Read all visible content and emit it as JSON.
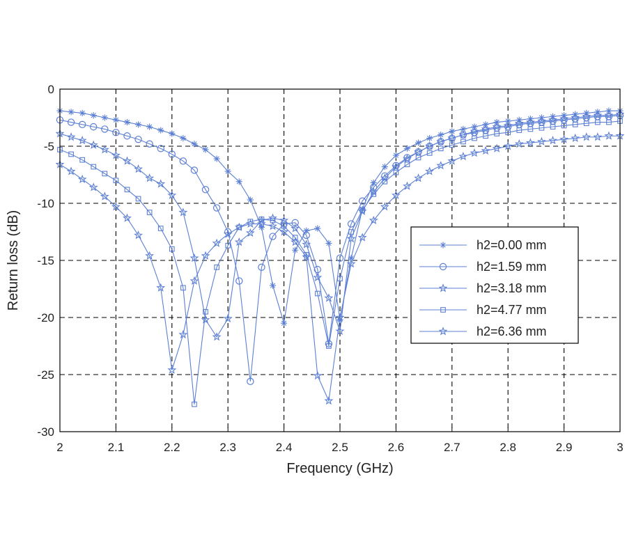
{
  "chart_data": {
    "type": "line",
    "title": "",
    "xlabel": "Frequency (GHz)",
    "ylabel": "Return loss (dB)",
    "xlim": [
      2,
      3
    ],
    "ylim": [
      -30,
      0
    ],
    "xticks": [
      2,
      2.1,
      2.2,
      2.3,
      2.4,
      2.5,
      2.6,
      2.7,
      2.8,
      2.9,
      3
    ],
    "xtick_labels": [
      "2",
      "2.1",
      "2.2",
      "2.3",
      "2.4",
      "2.5",
      "2.6",
      "2.7",
      "2.8",
      "2.9",
      "3"
    ],
    "yticks": [
      0,
      -5,
      -10,
      -15,
      -20,
      -25,
      -30
    ],
    "ytick_labels": [
      "0",
      "-5",
      "-10",
      "-15",
      "-20",
      "-25",
      "-30"
    ],
    "grid": true,
    "legend_position": "center-right",
    "line_color": "#5b7fd4",
    "series": [
      {
        "name": "h2=0.00 mm",
        "marker": "asterisk",
        "x": [
          2.0,
          2.02,
          2.04,
          2.06,
          2.08,
          2.1,
          2.12,
          2.14,
          2.16,
          2.18,
          2.2,
          2.22,
          2.24,
          2.26,
          2.28,
          2.3,
          2.32,
          2.34,
          2.36,
          2.38,
          2.4,
          2.42,
          2.44,
          2.46,
          2.48,
          2.5,
          2.52,
          2.54,
          2.56,
          2.58,
          2.6,
          2.62,
          2.64,
          2.66,
          2.68,
          2.7,
          2.72,
          2.74,
          2.76,
          2.78,
          2.8,
          2.82,
          2.84,
          2.86,
          2.88,
          2.9,
          2.92,
          2.94,
          2.96,
          2.98,
          3.0
        ],
        "y": [
          -1.9,
          -2.0,
          -2.1,
          -2.3,
          -2.5,
          -2.7,
          -2.9,
          -3.1,
          -3.3,
          -3.6,
          -3.9,
          -4.3,
          -4.8,
          -5.3,
          -6.1,
          -7.2,
          -8.1,
          -9.7,
          -12.1,
          -17.2,
          -20.5,
          -14.1,
          -12.4,
          -12.2,
          -13.5,
          -20.2,
          -14.8,
          -10.5,
          -8.2,
          -6.8,
          -5.8,
          -5.2,
          -4.7,
          -4.3,
          -4.0,
          -3.7,
          -3.5,
          -3.3,
          -3.1,
          -2.9,
          -2.8,
          -2.7,
          -2.6,
          -2.5,
          -2.4,
          -2.3,
          -2.2,
          -2.1,
          -2.0,
          -1.9,
          -1.9
        ]
      },
      {
        "name": "h2=1.59 mm",
        "marker": "circle",
        "x": [
          2.0,
          2.02,
          2.04,
          2.06,
          2.08,
          2.1,
          2.12,
          2.14,
          2.16,
          2.18,
          2.2,
          2.22,
          2.24,
          2.26,
          2.28,
          2.3,
          2.32,
          2.34,
          2.36,
          2.38,
          2.4,
          2.42,
          2.44,
          2.46,
          2.48,
          2.5,
          2.52,
          2.54,
          2.56,
          2.58,
          2.6,
          2.62,
          2.64,
          2.66,
          2.68,
          2.7,
          2.72,
          2.74,
          2.76,
          2.78,
          2.8,
          2.82,
          2.84,
          2.86,
          2.88,
          2.9,
          2.92,
          2.94,
          2.96,
          2.98,
          3.0
        ],
        "y": [
          -2.7,
          -2.9,
          -3.1,
          -3.3,
          -3.5,
          -3.8,
          -4.1,
          -4.4,
          -4.8,
          -5.2,
          -5.7,
          -6.3,
          -7.1,
          -8.8,
          -10.4,
          -12.5,
          -16.8,
          -25.6,
          -15.6,
          -12.9,
          -11.8,
          -11.7,
          -12.8,
          -15.8,
          -22.3,
          -14.8,
          -11.8,
          -9.8,
          -8.6,
          -7.6,
          -6.7,
          -6.0,
          -5.5,
          -5.0,
          -4.6,
          -4.3,
          -4.0,
          -3.8,
          -3.6,
          -3.4,
          -3.3,
          -3.1,
          -3.0,
          -2.9,
          -2.8,
          -2.7,
          -2.6,
          -2.5,
          -2.4,
          -2.4,
          -2.3
        ]
      },
      {
        "name": "h2=3.18 mm",
        "marker": "star",
        "x": [
          2.0,
          2.02,
          2.04,
          2.06,
          2.08,
          2.1,
          2.12,
          2.14,
          2.16,
          2.18,
          2.2,
          2.22,
          2.24,
          2.26,
          2.28,
          2.3,
          2.32,
          2.34,
          2.36,
          2.38,
          2.4,
          2.42,
          2.44,
          2.46,
          2.48,
          2.5,
          2.52,
          2.54,
          2.56,
          2.58,
          2.6,
          2.62,
          2.64,
          2.66,
          2.68,
          2.7,
          2.72,
          2.74,
          2.76,
          2.78,
          2.8,
          2.82,
          2.84,
          2.86,
          2.88,
          2.9,
          2.92,
          2.94,
          2.96,
          2.98,
          3.0
        ],
        "y": [
          -3.9,
          -4.2,
          -4.5,
          -4.9,
          -5.3,
          -5.8,
          -6.3,
          -7.0,
          -7.8,
          -8.3,
          -9.3,
          -10.8,
          -14.8,
          -20.2,
          -21.7,
          -20.1,
          -13.4,
          -12.6,
          -11.5,
          -11.3,
          -11.5,
          -12.2,
          -13.6,
          -16.5,
          -18.3,
          -21.2,
          -13.1,
          -10.7,
          -9.0,
          -7.8,
          -6.8,
          -6.1,
          -5.5,
          -5.0,
          -4.6,
          -4.3,
          -4.0,
          -3.7,
          -3.5,
          -3.3,
          -3.2,
          -3.0,
          -2.9,
          -2.8,
          -2.7,
          -2.6,
          -2.5,
          -2.4,
          -2.3,
          -2.3,
          -2.2
        ]
      },
      {
        "name": "h2=4.77 mm",
        "marker": "square",
        "x": [
          2.0,
          2.02,
          2.04,
          2.06,
          2.08,
          2.1,
          2.12,
          2.14,
          2.16,
          2.18,
          2.2,
          2.22,
          2.24,
          2.26,
          2.28,
          2.3,
          2.32,
          2.34,
          2.36,
          2.38,
          2.4,
          2.42,
          2.44,
          2.46,
          2.48,
          2.5,
          2.52,
          2.54,
          2.56,
          2.58,
          2.6,
          2.62,
          2.64,
          2.66,
          2.68,
          2.7,
          2.72,
          2.74,
          2.76,
          2.78,
          2.8,
          2.82,
          2.84,
          2.86,
          2.88,
          2.9,
          2.92,
          2.94,
          2.96,
          2.98,
          3.0
        ],
        "y": [
          -5.3,
          -5.7,
          -6.2,
          -6.8,
          -7.4,
          -8.0,
          -8.8,
          -9.6,
          -10.8,
          -12.2,
          -14.0,
          -17.4,
          -27.6,
          -19.5,
          -15.6,
          -13.7,
          -12.1,
          -11.6,
          -11.4,
          -11.5,
          -12.0,
          -13.0,
          -14.5,
          -17.9,
          -22.5,
          -16.6,
          -12.5,
          -10.6,
          -9.2,
          -8.1,
          -7.3,
          -6.6,
          -6.0,
          -5.6,
          -5.2,
          -4.9,
          -4.6,
          -4.3,
          -4.1,
          -3.9,
          -3.8,
          -3.6,
          -3.5,
          -3.4,
          -3.3,
          -3.2,
          -3.1,
          -3.0,
          -2.9,
          -2.9,
          -2.8
        ]
      },
      {
        "name": "h2=6.36 mm",
        "marker": "star",
        "x": [
          2.0,
          2.02,
          2.04,
          2.06,
          2.08,
          2.1,
          2.12,
          2.14,
          2.16,
          2.18,
          2.2,
          2.22,
          2.24,
          2.26,
          2.28,
          2.3,
          2.32,
          2.34,
          2.36,
          2.38,
          2.4,
          2.42,
          2.44,
          2.46,
          2.48,
          2.5,
          2.52,
          2.54,
          2.56,
          2.58,
          2.6,
          2.62,
          2.64,
          2.66,
          2.68,
          2.7,
          2.72,
          2.74,
          2.76,
          2.78,
          2.8,
          2.82,
          2.84,
          2.86,
          2.88,
          2.9,
          2.92,
          2.94,
          2.96,
          2.98,
          3.0
        ],
        "y": [
          -6.6,
          -7.2,
          -7.9,
          -8.6,
          -9.4,
          -10.3,
          -11.3,
          -12.8,
          -14.6,
          -17.4,
          -24.6,
          -21.5,
          -16.8,
          -14.6,
          -13.5,
          -12.7,
          -12.1,
          -11.8,
          -11.8,
          -12.0,
          -12.5,
          -13.4,
          -14.7,
          -25.1,
          -27.3,
          -20.0,
          -15.3,
          -13.0,
          -11.5,
          -10.3,
          -9.3,
          -8.5,
          -7.8,
          -7.2,
          -6.7,
          -6.3,
          -5.9,
          -5.6,
          -5.4,
          -5.2,
          -5.0,
          -4.8,
          -4.7,
          -4.6,
          -4.5,
          -4.4,
          -4.3,
          -4.2,
          -4.2,
          -4.1,
          -4.1
        ]
      }
    ]
  }
}
